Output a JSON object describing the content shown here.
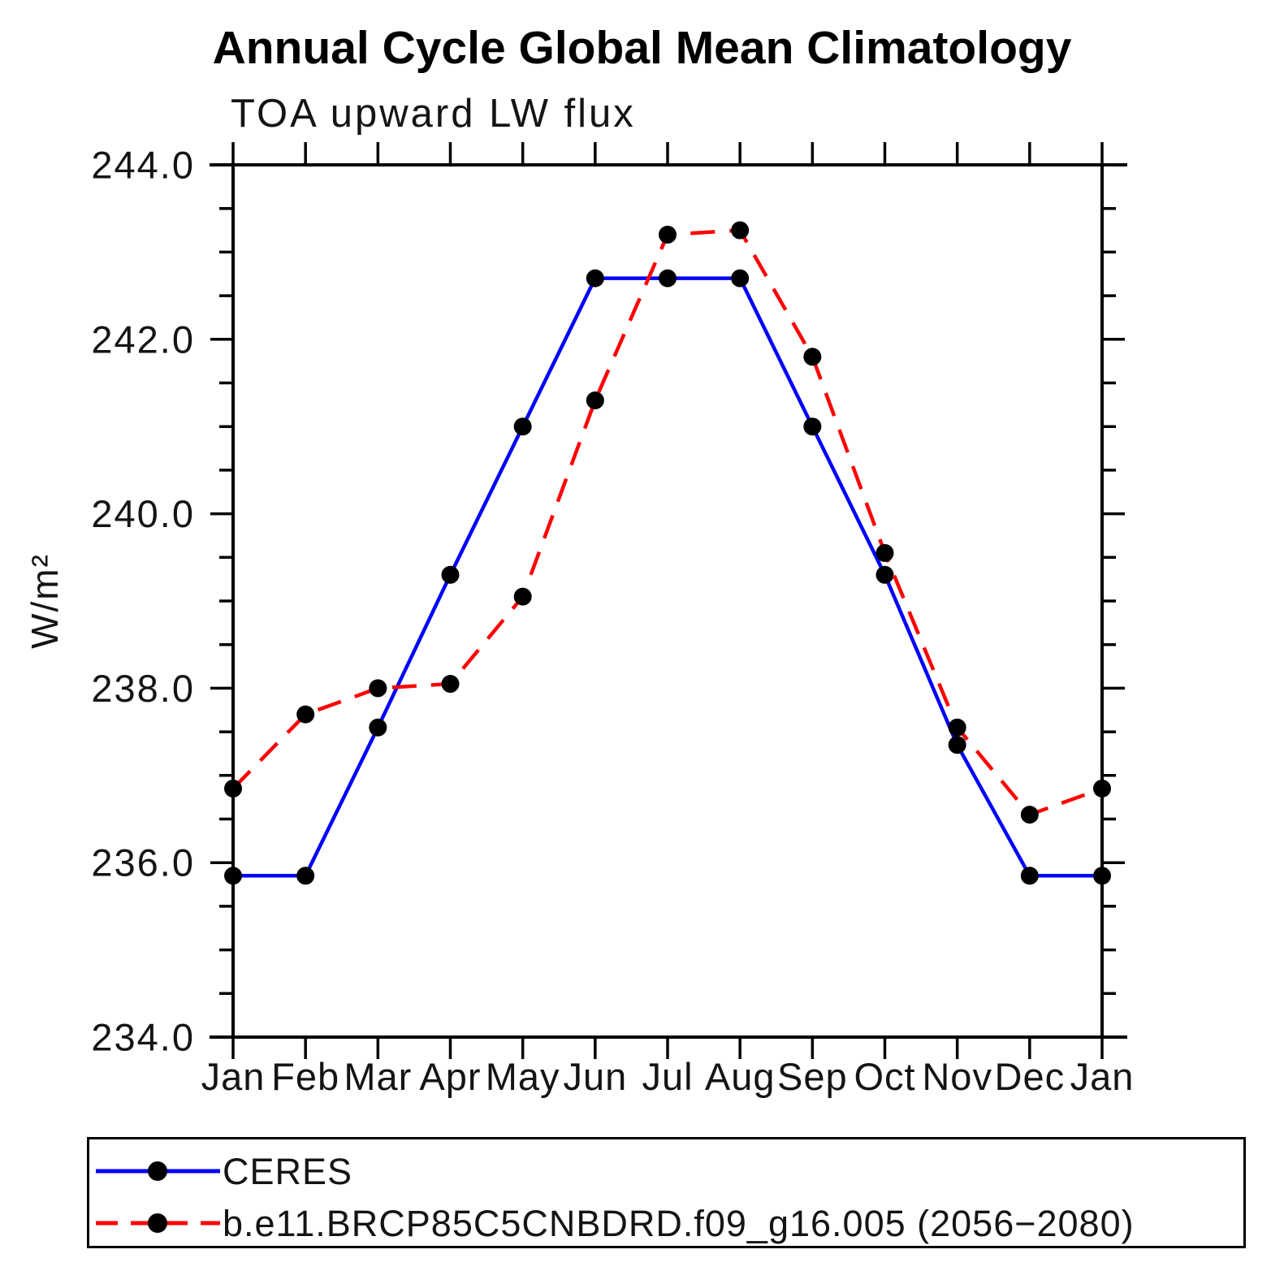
{
  "title": "Annual Cycle Global Mean Climatology",
  "subtitle": "TOA upward LW flux",
  "chart_data": {
    "type": "line",
    "categories": [
      "Jan",
      "Feb",
      "Mar",
      "Apr",
      "May",
      "Jun",
      "Jul",
      "Aug",
      "Sep",
      "Oct",
      "Nov",
      "Dec",
      "Jan"
    ],
    "series": [
      {
        "name": "CERES",
        "color": "#0000ff",
        "line_style": "solid",
        "marker": "circle",
        "marker_color": "#000000",
        "values": [
          235.85,
          235.85,
          237.55,
          239.3,
          241.0,
          242.7,
          242.7,
          242.7,
          241.0,
          239.3,
          237.35,
          235.85,
          235.85
        ]
      },
      {
        "name": "b.e11.BRCP85C5CNBDRD.f09_g16.005 (2056−2080)",
        "color": "#ff0000",
        "line_style": "dashed",
        "marker": "circle",
        "marker_color": "#000000",
        "values": [
          236.85,
          237.7,
          238.0,
          238.05,
          239.05,
          241.3,
          243.2,
          243.25,
          241.8,
          239.55,
          237.55,
          236.55,
          236.85
        ]
      }
    ],
    "xlabel": "",
    "ylabel": "W/m²",
    "ylim": [
      234.0,
      244.0
    ],
    "y_major_step": 2.0,
    "y_minor_step": 0.5,
    "y_tick_labels": [
      "234.0",
      "236.0",
      "238.0",
      "240.0",
      "242.0",
      "244.0"
    ],
    "grid": false,
    "legend_position": "bottom",
    "axis_color": "#000000",
    "text_color": "#141414"
  }
}
